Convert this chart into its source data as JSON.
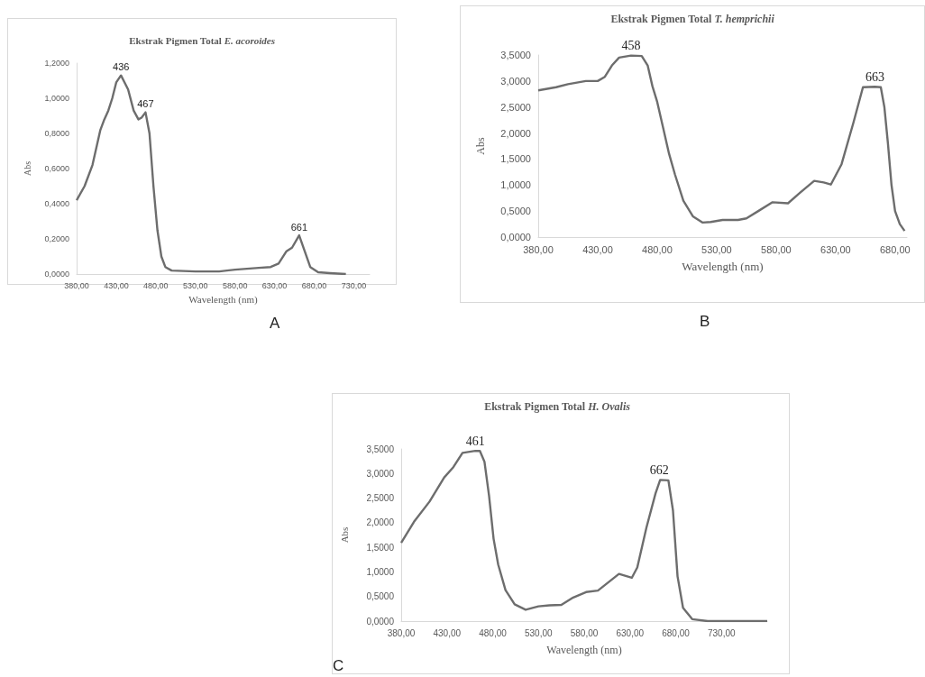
{
  "chart_data": [
    {
      "type": "line",
      "title": "Ekstrak Pigmen Total E. acoroides",
      "xlabel": "Wavelength (nm)",
      "ylabel": "Abs",
      "xlim": [
        380,
        750
      ],
      "xticks": [
        {
          "value": 380,
          "label": "380,00"
        },
        {
          "value": 430,
          "label": "430,00"
        },
        {
          "value": 480,
          "label": "480,00"
        },
        {
          "value": 530,
          "label": "530,00"
        },
        {
          "value": 580,
          "label": "580,00"
        },
        {
          "value": 630,
          "label": "630,00"
        },
        {
          "value": 680,
          "label": "680,00"
        },
        {
          "value": 730,
          "label": "730,00"
        }
      ],
      "ylim": [
        0,
        1.2
      ],
      "yticks": [
        {
          "value": 0,
          "label": "0,0000"
        },
        {
          "value": 0.2,
          "label": "0,2000"
        },
        {
          "value": 0.4,
          "label": "0,4000"
        },
        {
          "value": 0.6,
          "label": "0,6000"
        },
        {
          "value": 0.8,
          "label": "0,8000"
        },
        {
          "value": 1,
          "label": "1,0000"
        },
        {
          "value": 1.2,
          "label": "1,2000"
        }
      ],
      "series": [
        {
          "color": "#6d6d6d",
          "x": [
            380,
            390,
            400,
            410,
            415,
            420,
            425,
            430,
            436,
            445,
            452,
            458,
            462,
            467,
            472,
            477,
            482,
            487,
            492,
            500,
            530,
            560,
            580,
            610,
            625,
            635,
            645,
            652,
            661,
            668,
            675,
            685,
            700,
            720
          ],
          "values": [
            0.42,
            0.5,
            0.62,
            0.82,
            0.88,
            0.93,
            1.0,
            1.09,
            1.13,
            1.05,
            0.93,
            0.88,
            0.89,
            0.92,
            0.8,
            0.5,
            0.25,
            0.1,
            0.04,
            0.02,
            0.015,
            0.015,
            0.025,
            0.035,
            0.04,
            0.06,
            0.13,
            0.15,
            0.22,
            0.13,
            0.04,
            0.01,
            0.005,
            0
          ]
        }
      ],
      "annotations": [
        {
          "text": "436",
          "x": 436,
          "y": 1.13
        },
        {
          "text": "467",
          "x": 467,
          "y": 0.92
        },
        {
          "text": "661",
          "x": 661,
          "y": 0.22
        },
        "A"
      ]
    },
    {
      "type": "line",
      "title": "Ekstrak Pigmen Total T. hemprichii",
      "xlabel": "Wavelength (nm)",
      "ylabel": "Abs",
      "xlim": [
        380,
        690
      ],
      "xticks": [
        {
          "value": 380,
          "label": "380,00"
        },
        {
          "value": 430,
          "label": "430,00"
        },
        {
          "value": 480,
          "label": "480,00"
        },
        {
          "value": 530,
          "label": "530,00"
        },
        {
          "value": 580,
          "label": "580,00"
        },
        {
          "value": 630,
          "label": "630,00"
        },
        {
          "value": 680,
          "label": "680,00"
        }
      ],
      "ylim": [
        0,
        3.5
      ],
      "yticks": [
        {
          "value": 0,
          "label": "0,0000"
        },
        {
          "value": 0.5,
          "label": "0,5000"
        },
        {
          "value": 1,
          "label": "1,0000"
        },
        {
          "value": 1.5,
          "label": "1,5000"
        },
        {
          "value": 2,
          "label": "2,0000"
        },
        {
          "value": 2.5,
          "label": "2,5000"
        },
        {
          "value": 3,
          "label": "3,0000"
        },
        {
          "value": 3.5,
          "label": "3,5000"
        }
      ],
      "series": [
        {
          "color": "#6d6d6d",
          "x": [
            380,
            395,
            405,
            420,
            430,
            436,
            442,
            448,
            458,
            467,
            472,
            476,
            480,
            485,
            490,
            495,
            502,
            510,
            518,
            525,
            535,
            548,
            555,
            565,
            577,
            590,
            600,
            612,
            620,
            626,
            635,
            645,
            653,
            663,
            668,
            671,
            674,
            677,
            680,
            684,
            688
          ],
          "values": [
            2.82,
            2.88,
            2.94,
            3.0,
            3.0,
            3.08,
            3.3,
            3.45,
            3.49,
            3.48,
            3.3,
            2.9,
            2.6,
            2.1,
            1.6,
            1.2,
            0.7,
            0.4,
            0.28,
            0.29,
            0.33,
            0.33,
            0.36,
            0.5,
            0.67,
            0.65,
            0.85,
            1.08,
            1.05,
            1.01,
            1.4,
            2.2,
            2.88,
            2.89,
            2.88,
            2.5,
            1.8,
            1.0,
            0.5,
            0.25,
            0.12
          ]
        }
      ],
      "annotations": [
        {
          "text": "458",
          "x": 458,
          "y": 3.49
        },
        {
          "text": "663",
          "x": 663,
          "y": 2.89
        },
        "B"
      ]
    },
    {
      "type": "line",
      "title": "Ekstrak Pigmen Total H. Ovalis",
      "xlabel": "Wavelength (nm)",
      "ylabel": "Abs",
      "xlim": [
        380,
        780
      ],
      "xticks": [
        {
          "value": 380,
          "label": "380,00"
        },
        {
          "value": 430,
          "label": "430,00"
        },
        {
          "value": 480,
          "label": "480,00"
        },
        {
          "value": 530,
          "label": "530,00"
        },
        {
          "value": 580,
          "label": "580,00"
        },
        {
          "value": 630,
          "label": "630,00"
        },
        {
          "value": 680,
          "label": "680,00"
        },
        {
          "value": 730,
          "label": "730,00"
        }
      ],
      "ylim": [
        0,
        3.5
      ],
      "yticks": [
        {
          "value": 0,
          "label": "0,0000"
        },
        {
          "value": 0.5,
          "label": "0,5000"
        },
        {
          "value": 1,
          "label": "1,0000"
        },
        {
          "value": 1.5,
          "label": "1,5000"
        },
        {
          "value": 2,
          "label": "2,0000"
        },
        {
          "value": 2.5,
          "label": "2,5000"
        },
        {
          "value": 3,
          "label": "3,0000"
        },
        {
          "value": 3.5,
          "label": "3,5000"
        }
      ],
      "series": [
        {
          "color": "#6d6d6d",
          "x": [
            380,
            394,
            411,
            427,
            437,
            447,
            461,
            466,
            471,
            476,
            481,
            486,
            494,
            504,
            516,
            530,
            542,
            555,
            568,
            582,
            595,
            618,
            632,
            638,
            648,
            658,
            663,
            672,
            677,
            682,
            688,
            698,
            715,
            780
          ],
          "values": [
            1.59,
            2.02,
            2.43,
            2.92,
            3.13,
            3.42,
            3.46,
            3.46,
            3.24,
            2.55,
            1.67,
            1.15,
            0.63,
            0.34,
            0.23,
            0.3,
            0.32,
            0.33,
            0.48,
            0.59,
            0.62,
            0.96,
            0.88,
            1.09,
            1.9,
            2.6,
            2.87,
            2.86,
            2.25,
            0.91,
            0.27,
            0.04,
            0,
            0
          ]
        }
      ],
      "annotations": [
        {
          "text": "461",
          "x": 461,
          "y": 3.46
        },
        {
          "text": "662",
          "x": 662,
          "y": 2.87
        },
        "C"
      ]
    }
  ]
}
